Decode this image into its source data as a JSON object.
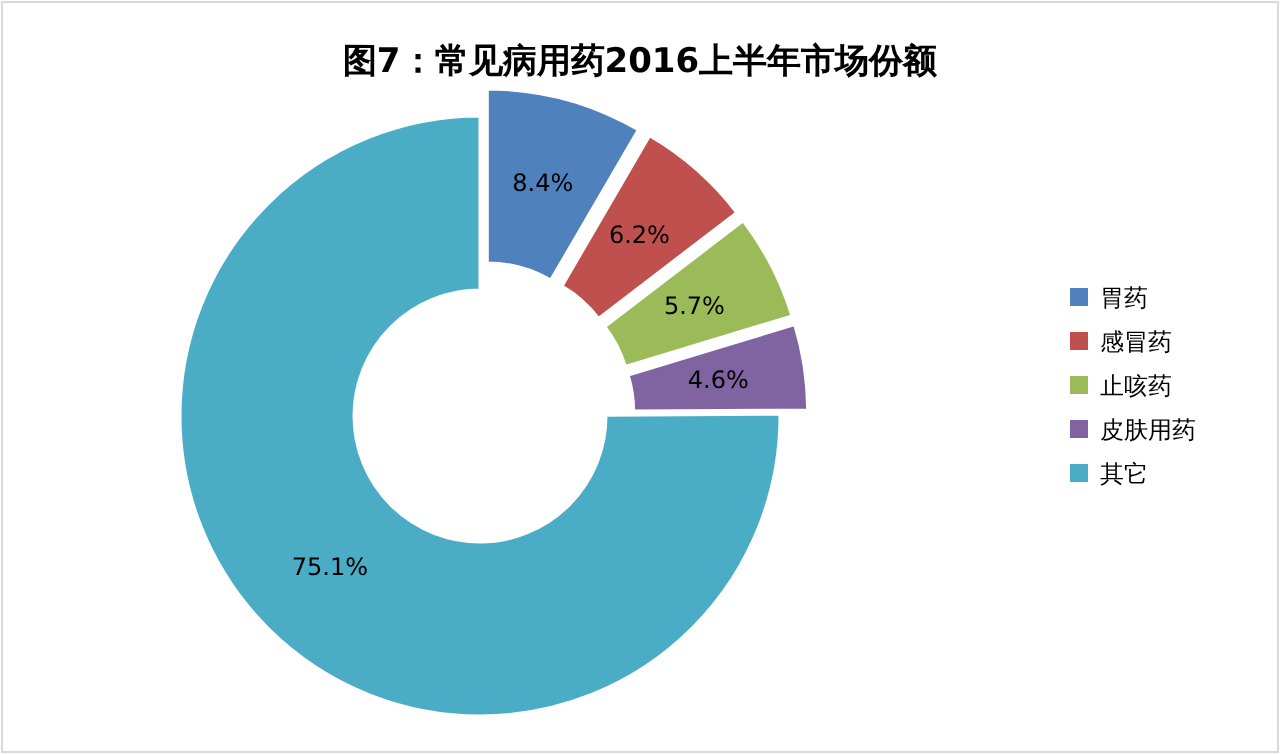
{
  "chart_data": {
    "type": "donut",
    "title": "图7：常见病用药2016上半年市场份额",
    "categories": [
      "胃药",
      "感冒药",
      "止咳药",
      "皮肤用药",
      "其它"
    ],
    "values": [
      8.4,
      6.2,
      5.7,
      4.6,
      75.1
    ],
    "colors": [
      "#4f81bd",
      "#c0504d",
      "#9bbb59",
      "#8064a2",
      "#4bacc6"
    ],
    "value_labels": [
      "8.4%",
      "6.2%",
      "5.7%",
      "4.6%",
      "75.1%"
    ],
    "legend": "right"
  }
}
